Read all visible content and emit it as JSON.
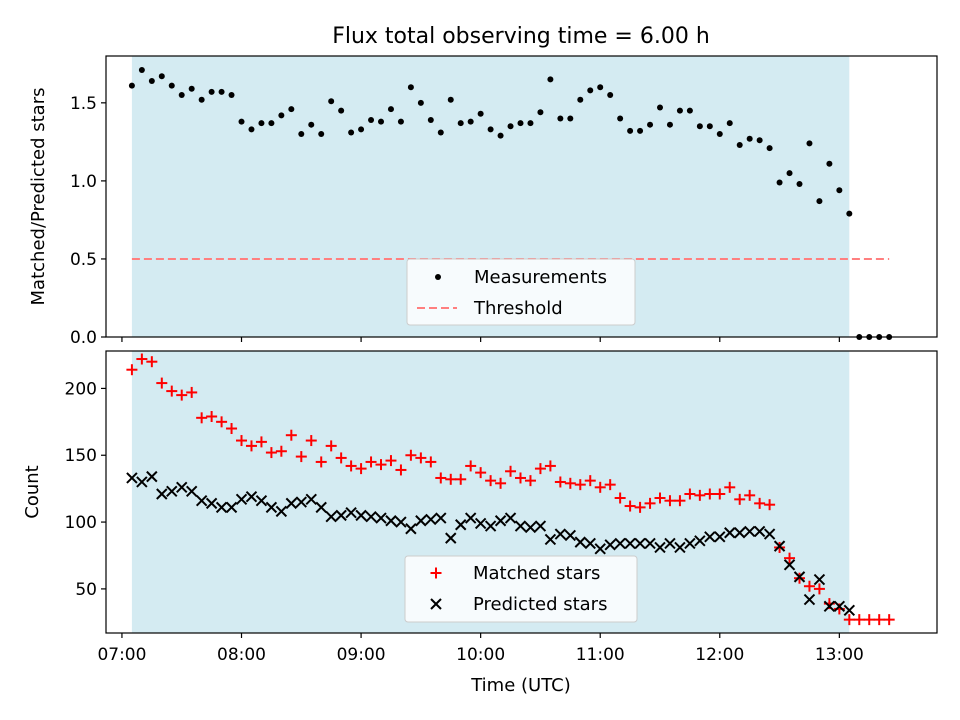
{
  "chart_data": [
    {
      "type": "scatter",
      "title": "Flux total observing time = 6.00 h",
      "xlabel": "",
      "ylabel": "Matched/Predicted stars",
      "xlim": [
        "06:52",
        "13:49"
      ],
      "ylim": [
        0,
        1.8
      ],
      "yticks": [
        0.0,
        0.5,
        1.0,
        1.5
      ],
      "ytick_labels": [
        "0.0",
        "0.5",
        "1.0",
        "1.5"
      ],
      "shaded_interval": [
        "07:05",
        "13:05"
      ],
      "shade_color": "#add8e6",
      "legend_position": "bottom-center",
      "grid": false,
      "threshold": {
        "name": "Threshold",
        "value": 0.5,
        "x_range": [
          "07:05",
          "13:25"
        ],
        "color": "#ff7f7f",
        "style": "dashed"
      },
      "series": [
        {
          "name": "Measurements",
          "marker": "dot",
          "color": "#000000",
          "x": [
            "07:05",
            "07:10",
            "07:15",
            "07:20",
            "07:25",
            "07:30",
            "07:35",
            "07:40",
            "07:45",
            "07:50",
            "07:55",
            "08:00",
            "08:05",
            "08:10",
            "08:15",
            "08:20",
            "08:25",
            "08:30",
            "08:35",
            "08:40",
            "08:45",
            "08:50",
            "08:55",
            "09:00",
            "09:05",
            "09:10",
            "09:15",
            "09:20",
            "09:25",
            "09:30",
            "09:35",
            "09:40",
            "09:45",
            "09:50",
            "09:55",
            "10:00",
            "10:05",
            "10:10",
            "10:15",
            "10:20",
            "10:25",
            "10:30",
            "10:35",
            "10:40",
            "10:45",
            "10:50",
            "10:55",
            "11:00",
            "11:05",
            "11:10",
            "11:15",
            "11:20",
            "11:25",
            "11:30",
            "11:35",
            "11:40",
            "11:45",
            "11:50",
            "11:55",
            "12:00",
            "12:05",
            "12:10",
            "12:15",
            "12:20",
            "12:25",
            "12:30",
            "12:35",
            "12:40",
            "12:45",
            "12:50",
            "12:55",
            "13:00",
            "13:05",
            "13:10",
            "13:15",
            "13:20",
            "13:25"
          ],
          "y": [
            1.61,
            1.71,
            1.64,
            1.67,
            1.61,
            1.55,
            1.59,
            1.52,
            1.57,
            1.57,
            1.55,
            1.38,
            1.33,
            1.37,
            1.37,
            1.42,
            1.46,
            1.3,
            1.36,
            1.3,
            1.51,
            1.45,
            1.31,
            1.33,
            1.39,
            1.38,
            1.46,
            1.38,
            1.6,
            1.5,
            1.39,
            1.31,
            1.52,
            1.37,
            1.38,
            1.43,
            1.33,
            1.29,
            1.35,
            1.37,
            1.37,
            1.44,
            1.65,
            1.4,
            1.4,
            1.52,
            1.58,
            1.6,
            1.55,
            1.4,
            1.32,
            1.32,
            1.36,
            1.47,
            1.36,
            1.45,
            1.45,
            1.35,
            1.35,
            1.3,
            1.37,
            1.23,
            1.27,
            1.26,
            1.21,
            0.99,
            1.05,
            0.98,
            1.24,
            0.87,
            1.11,
            0.94,
            0.79,
            0.0,
            0.0,
            0.0,
            0.0
          ]
        }
      ]
    },
    {
      "type": "scatter",
      "title": "",
      "xlabel": "Time (UTC)",
      "ylabel": "Count",
      "xlim": [
        "06:52",
        "13:49"
      ],
      "ylim": [
        17,
        228
      ],
      "xticks": [
        "07:00",
        "08:00",
        "09:00",
        "10:00",
        "11:00",
        "12:00",
        "13:00"
      ],
      "xtick_labels": [
        "07:00",
        "08:00",
        "09:00",
        "10:00",
        "11:00",
        "12:00",
        "13:00"
      ],
      "yticks": [
        50,
        100,
        150,
        200
      ],
      "ytick_labels": [
        "50",
        "100",
        "150",
        "200"
      ],
      "shaded_interval": [
        "07:05",
        "13:05"
      ],
      "shade_color": "#add8e6",
      "legend_position": "bottom-center",
      "grid": false,
      "series": [
        {
          "name": "Matched stars",
          "marker": "plus",
          "color": "#ff0000",
          "x": [
            "07:05",
            "07:10",
            "07:15",
            "07:20",
            "07:25",
            "07:30",
            "07:35",
            "07:40",
            "07:45",
            "07:50",
            "07:55",
            "08:00",
            "08:05",
            "08:10",
            "08:15",
            "08:20",
            "08:25",
            "08:30",
            "08:35",
            "08:40",
            "08:45",
            "08:50",
            "08:55",
            "09:00",
            "09:05",
            "09:10",
            "09:15",
            "09:20",
            "09:25",
            "09:30",
            "09:35",
            "09:40",
            "09:45",
            "09:50",
            "09:55",
            "10:00",
            "10:05",
            "10:10",
            "10:15",
            "10:20",
            "10:25",
            "10:30",
            "10:35",
            "10:40",
            "10:45",
            "10:50",
            "10:55",
            "11:00",
            "11:05",
            "11:10",
            "11:15",
            "11:20",
            "11:25",
            "11:30",
            "11:35",
            "11:40",
            "11:45",
            "11:50",
            "11:55",
            "12:00",
            "12:05",
            "12:10",
            "12:15",
            "12:20",
            "12:25",
            "12:30",
            "12:35",
            "12:40",
            "12:45",
            "12:50",
            "12:55",
            "13:00",
            "13:05",
            "13:10",
            "13:15",
            "13:20",
            "13:25"
          ],
          "y": [
            214,
            222,
            220,
            204,
            198,
            195,
            197,
            178,
            179,
            175,
            170,
            161,
            157,
            160,
            152,
            153,
            165,
            149,
            161,
            145,
            157,
            148,
            142,
            140,
            145,
            143,
            146,
            139,
            150,
            148,
            145,
            133,
            132,
            132,
            142,
            137,
            131,
            129,
            138,
            133,
            131,
            140,
            142,
            130,
            129,
            128,
            131,
            126,
            128,
            118,
            112,
            111,
            114,
            118,
            116,
            116,
            121,
            120,
            121,
            121,
            126,
            117,
            120,
            114,
            113,
            81,
            73,
            58,
            52,
            50,
            39,
            35,
            27,
            27,
            27,
            27,
            27
          ]
        },
        {
          "name": "Predicted stars",
          "marker": "x",
          "color": "#000000",
          "x": [
            "07:05",
            "07:10",
            "07:15",
            "07:20",
            "07:25",
            "07:30",
            "07:35",
            "07:40",
            "07:45",
            "07:50",
            "07:55",
            "08:00",
            "08:05",
            "08:10",
            "08:15",
            "08:20",
            "08:25",
            "08:30",
            "08:35",
            "08:40",
            "08:45",
            "08:50",
            "08:55",
            "09:00",
            "09:05",
            "09:10",
            "09:15",
            "09:20",
            "09:25",
            "09:30",
            "09:35",
            "09:40",
            "09:45",
            "09:50",
            "09:55",
            "10:00",
            "10:05",
            "10:10",
            "10:15",
            "10:20",
            "10:25",
            "10:30",
            "10:35",
            "10:40",
            "10:45",
            "10:50",
            "10:55",
            "11:00",
            "11:05",
            "11:10",
            "11:15",
            "11:20",
            "11:25",
            "11:30",
            "11:35",
            "11:40",
            "11:45",
            "11:50",
            "11:55",
            "12:00",
            "12:05",
            "12:10",
            "12:15",
            "12:20",
            "12:25",
            "12:30",
            "12:35",
            "12:40",
            "12:45",
            "12:50",
            "12:55",
            "13:00",
            "13:05"
          ],
          "y": [
            133,
            130,
            134,
            121,
            123,
            126,
            123,
            116,
            114,
            111,
            111,
            117,
            119,
            116,
            111,
            108,
            114,
            115,
            117,
            111,
            104,
            105,
            107,
            105,
            104,
            103,
            101,
            100,
            95,
            101,
            102,
            103,
            88,
            98,
            103,
            99,
            97,
            101,
            103,
            97,
            96,
            97,
            87,
            91,
            90,
            85,
            84,
            80,
            83,
            84,
            84,
            84,
            84,
            81,
            84,
            81,
            84,
            86,
            89,
            89,
            92,
            92,
            93,
            93,
            91,
            82,
            68,
            59,
            42,
            57,
            37,
            37,
            34
          ]
        }
      ]
    }
  ]
}
